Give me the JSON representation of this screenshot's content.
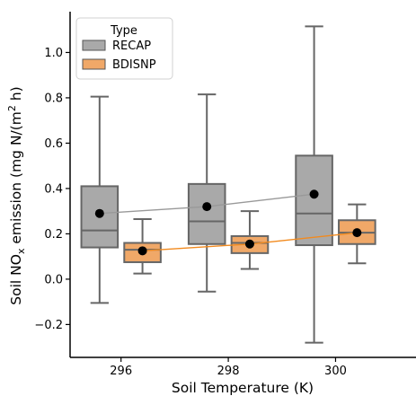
{
  "chart_data": {
    "type": "box",
    "xlabel": "Soil Temperature (K)",
    "ylabel_main": "Soil NO",
    "ylabel_sub": "x",
    "ylabel_mid": " emission (mg N/(m",
    "ylabel_sup": "2",
    "ylabel_end": " h)",
    "xlim": [
      295.05,
      301.5
    ],
    "ylim": [
      -0.345,
      1.18
    ],
    "x_ticks": [
      296,
      298,
      300
    ],
    "y_ticks": [
      -0.2,
      0.0,
      0.2,
      0.4,
      0.6,
      0.8,
      1.0
    ],
    "y_tick_labels": [
      "−0.2",
      "0.0",
      "0.2",
      "0.4",
      "0.6",
      "0.8",
      "1.0"
    ],
    "legend": {
      "title": "Type",
      "position": "top-left",
      "entries": [
        {
          "label": "RECAP",
          "color": "#a9a9a9"
        },
        {
          "label": "BDISNP",
          "color": "#f0a868"
        }
      ]
    },
    "series": [
      {
        "name": "RECAP",
        "color": "#a9a9a9",
        "line_color": "#999999",
        "boxes": [
          {
            "x": 296,
            "whislo": -0.105,
            "q1": 0.14,
            "median": 0.215,
            "q3": 0.41,
            "whishi": 0.805,
            "mean": 0.29
          },
          {
            "x": 298,
            "whislo": -0.055,
            "q1": 0.155,
            "median": 0.255,
            "q3": 0.42,
            "whishi": 0.815,
            "mean": 0.32
          },
          {
            "x": 300,
            "whislo": -0.28,
            "q1": 0.15,
            "median": 0.29,
            "q3": 0.545,
            "whishi": 1.115,
            "mean": 0.375
          }
        ]
      },
      {
        "name": "BDISNP",
        "color": "#f0a868",
        "line_color": "#f28a1e",
        "boxes": [
          {
            "x": 296,
            "whislo": 0.025,
            "q1": 0.075,
            "median": 0.13,
            "q3": 0.16,
            "whishi": 0.265,
            "mean": 0.125
          },
          {
            "x": 298,
            "whislo": 0.045,
            "q1": 0.115,
            "median": 0.16,
            "q3": 0.19,
            "whishi": 0.3,
            "mean": 0.155
          },
          {
            "x": 300,
            "whislo": 0.07,
            "q1": 0.155,
            "median": 0.205,
            "q3": 0.26,
            "whishi": 0.33,
            "mean": 0.205
          }
        ]
      }
    ]
  }
}
